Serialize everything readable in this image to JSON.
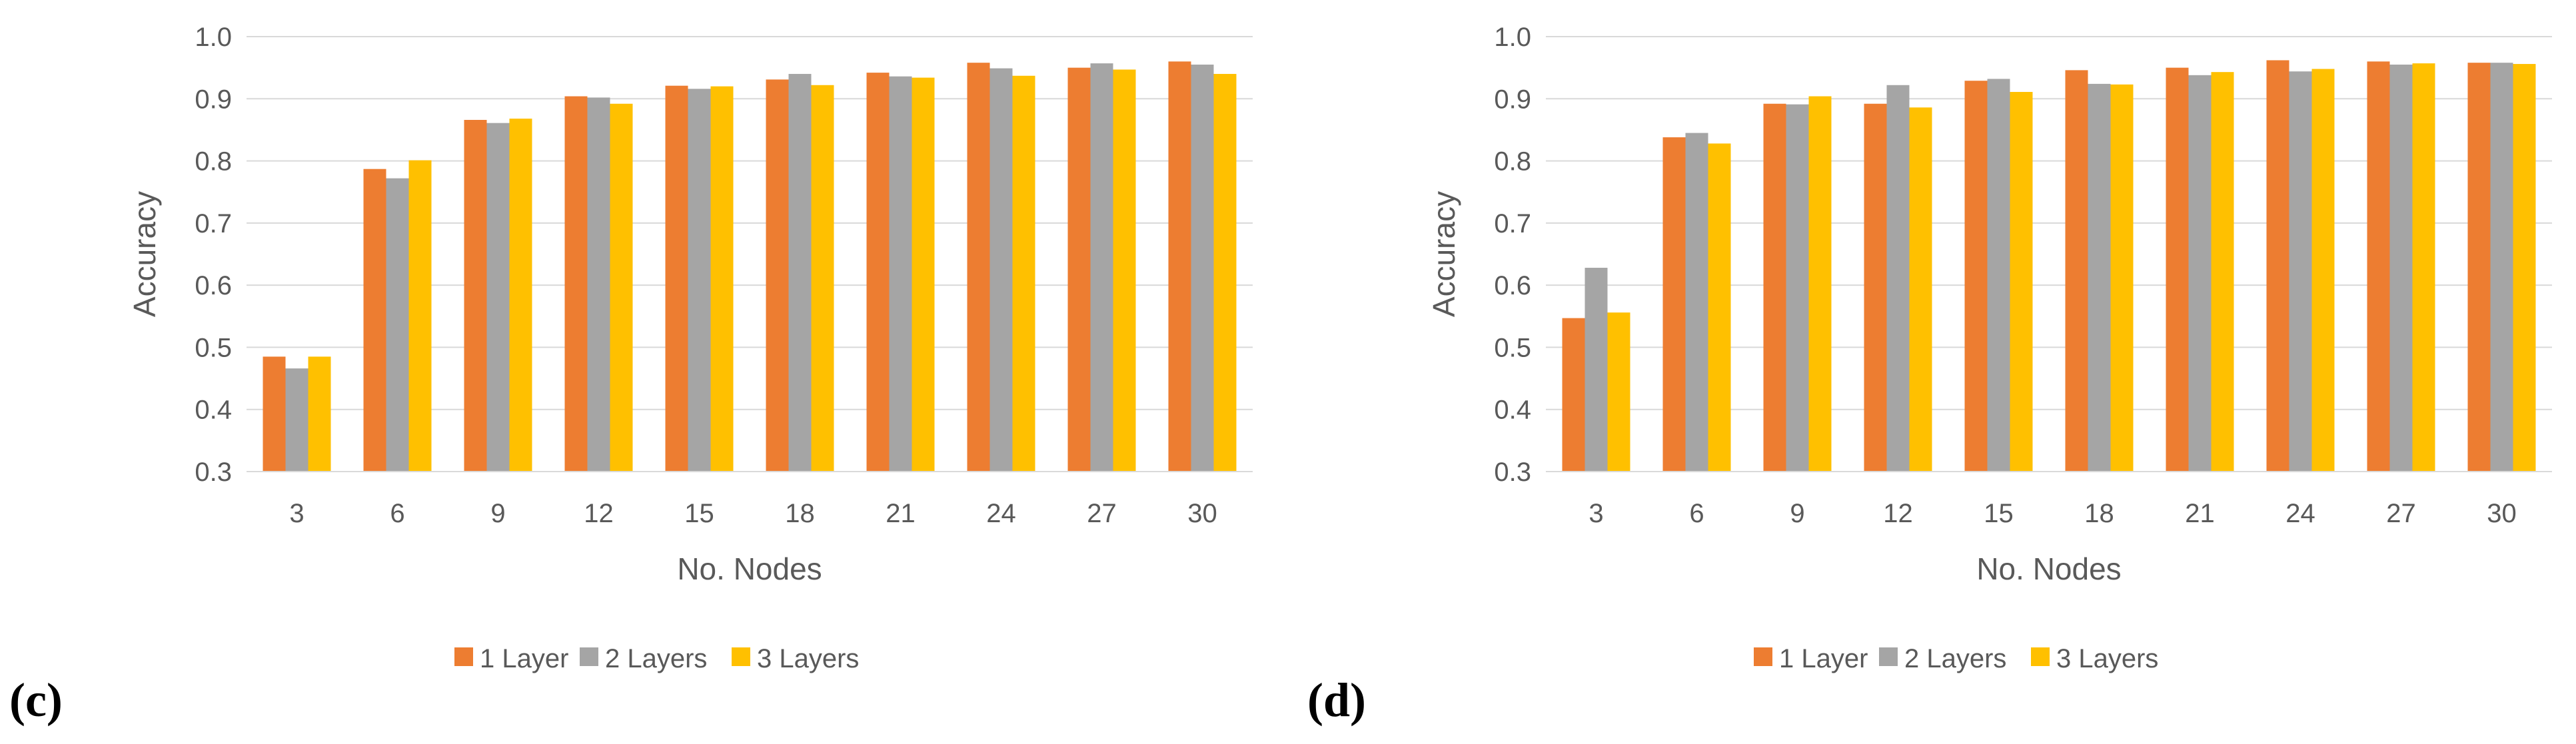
{
  "chart_data": [
    {
      "type": "bar",
      "panel_label": "(c)",
      "title": "",
      "xlabel": "No. Nodes",
      "ylabel": "Accuracy",
      "ylim": [
        0.3,
        1.0
      ],
      "yticks": [
        "0.3",
        "0.4",
        "0.5",
        "0.6",
        "0.7",
        "0.8",
        "0.9",
        "1.0"
      ],
      "grid": true,
      "legend": "bottom",
      "categories": [
        "3",
        "6",
        "9",
        "12",
        "15",
        "18",
        "21",
        "24",
        "27",
        "30"
      ],
      "series": [
        {
          "name": "1 Layer",
          "color": "#ED7D31",
          "values": [
            0.485,
            0.787,
            0.866,
            0.904,
            0.921,
            0.931,
            0.942,
            0.958,
            0.95,
            0.96
          ]
        },
        {
          "name": "2 Layers",
          "color": "#A5A5A5",
          "values": [
            0.466,
            0.772,
            0.861,
            0.902,
            0.916,
            0.94,
            0.936,
            0.949,
            0.957,
            0.955
          ]
        },
        {
          "name": "3 Layers",
          "color": "#FFC000",
          "values": [
            0.485,
            0.801,
            0.868,
            0.892,
            0.92,
            0.922,
            0.934,
            0.937,
            0.947,
            0.94
          ]
        }
      ]
    },
    {
      "type": "bar",
      "panel_label": "(d)",
      "title": "",
      "xlabel": "No. Nodes",
      "ylabel": "Accuracy",
      "ylim": [
        0.3,
        1.0
      ],
      "yticks": [
        "0.3",
        "0.4",
        "0.5",
        "0.6",
        "0.7",
        "0.8",
        "0.9",
        "1.0"
      ],
      "grid": true,
      "legend": "bottom",
      "categories": [
        "3",
        "6",
        "9",
        "12",
        "15",
        "18",
        "21",
        "24",
        "27",
        "30"
      ],
      "series": [
        {
          "name": "1 Layer",
          "color": "#ED7D31",
          "values": [
            0.547,
            0.838,
            0.892,
            0.892,
            0.929,
            0.946,
            0.95,
            0.962,
            0.96,
            0.958
          ]
        },
        {
          "name": "2 Layers",
          "color": "#A5A5A5",
          "values": [
            0.628,
            0.845,
            0.891,
            0.922,
            0.932,
            0.924,
            0.938,
            0.944,
            0.955,
            0.958
          ]
        },
        {
          "name": "3 Layers",
          "color": "#FFC000",
          "values": [
            0.556,
            0.828,
            0.904,
            0.886,
            0.911,
            0.923,
            0.943,
            0.948,
            0.957,
            0.956
          ]
        }
      ]
    }
  ]
}
